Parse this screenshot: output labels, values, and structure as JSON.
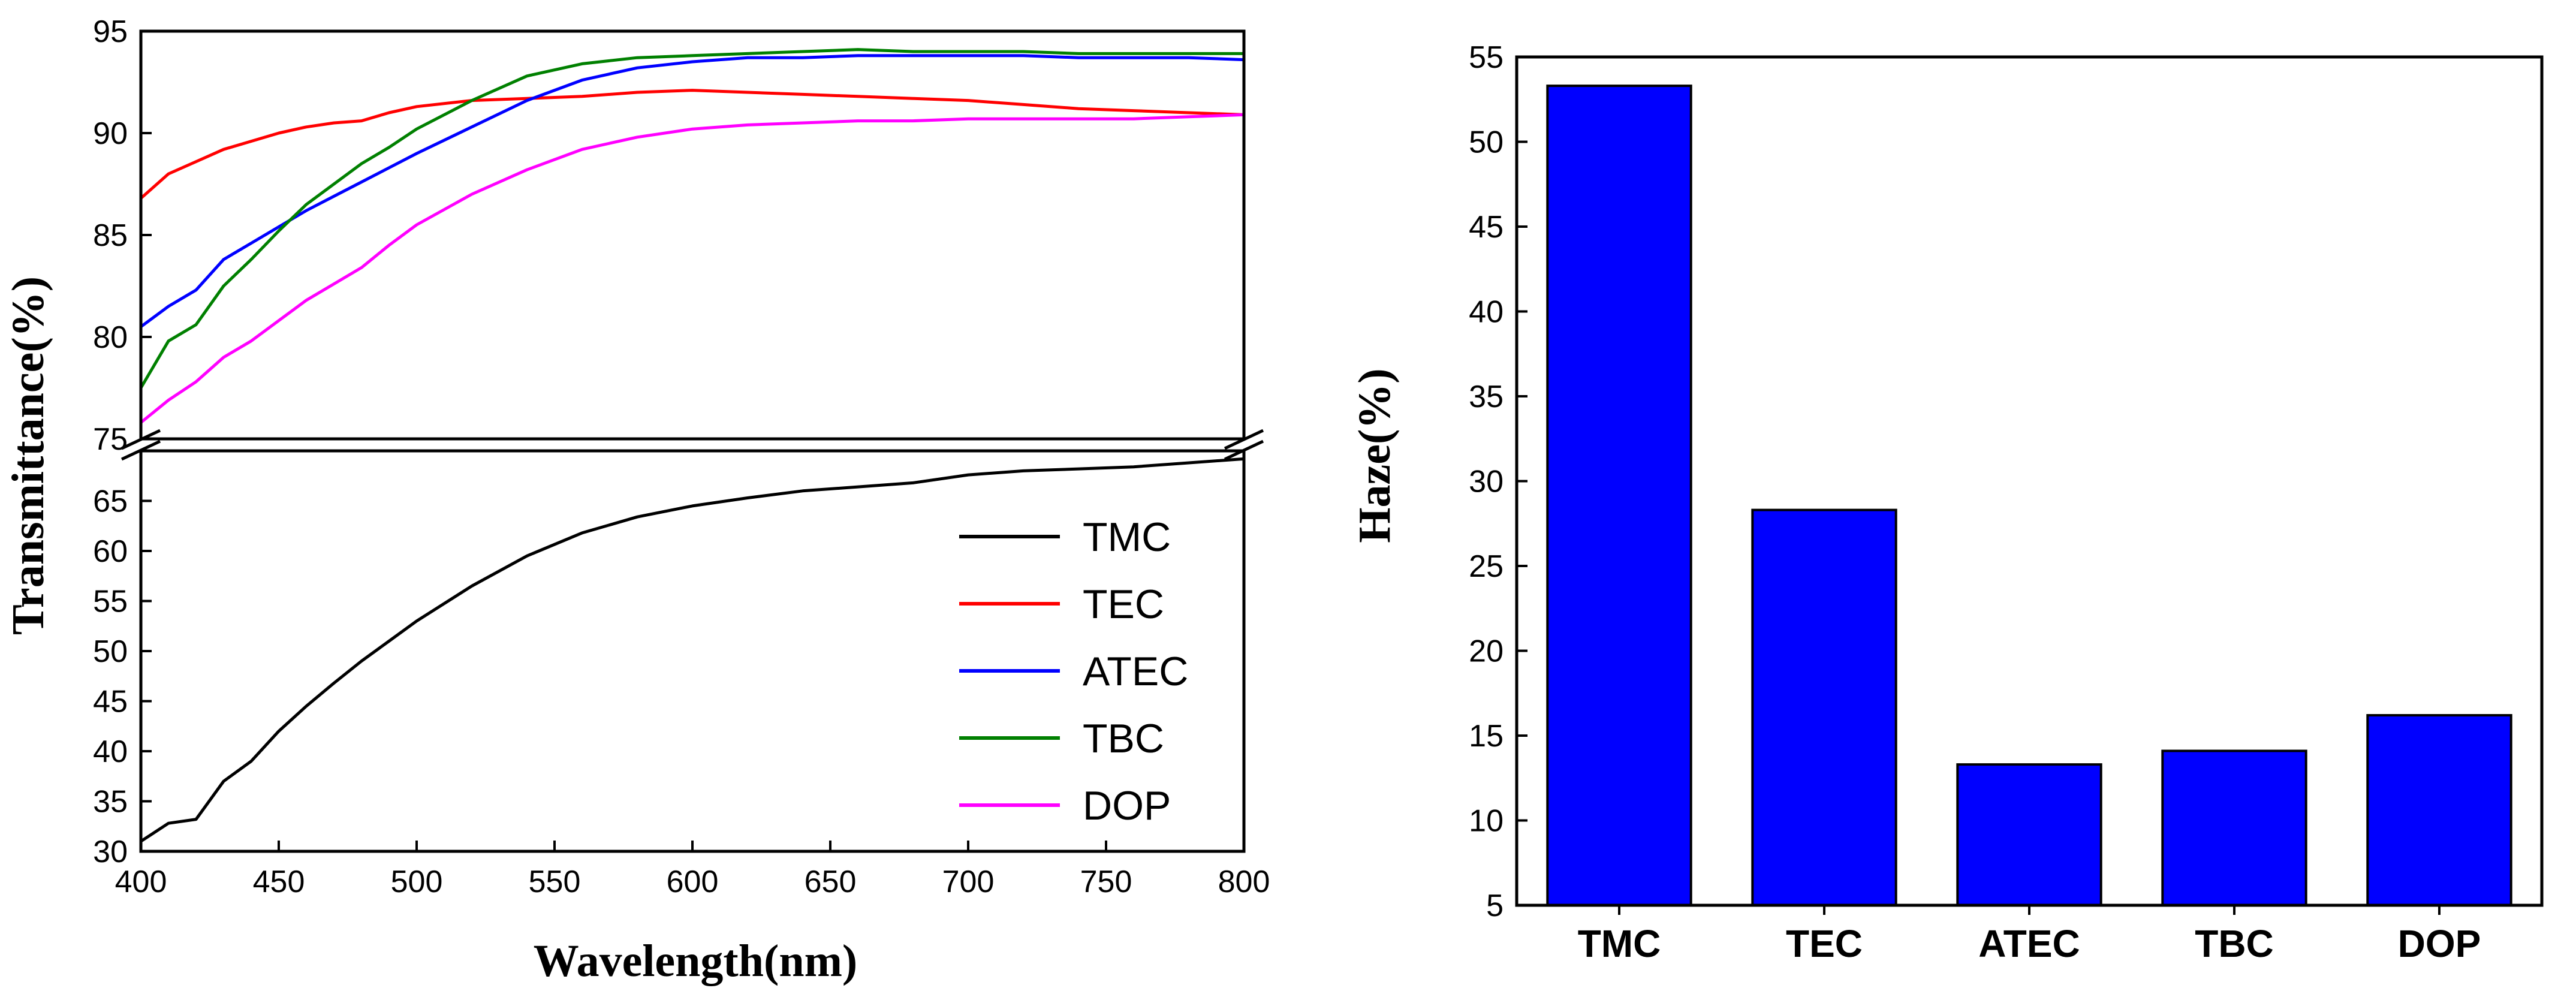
{
  "chart_data": [
    {
      "type": "line",
      "panel": "left",
      "xlabel": "Wavelength(nm)",
      "ylabel": "Transmittance(%)",
      "xlim": [
        400,
        800
      ],
      "x_ticks": [
        400,
        450,
        500,
        550,
        600,
        650,
        700,
        750,
        800
      ],
      "axis_break": true,
      "upper_ylim": [
        75,
        95
      ],
      "upper_y_ticks": [
        75,
        80,
        85,
        90,
        95
      ],
      "lower_ylim": [
        30,
        70
      ],
      "lower_y_ticks": [
        30,
        35,
        40,
        45,
        50,
        55,
        60,
        65
      ],
      "legend_position": "lower-right",
      "x": [
        400,
        410,
        420,
        430,
        440,
        450,
        460,
        470,
        480,
        490,
        500,
        520,
        540,
        560,
        580,
        600,
        620,
        640,
        660,
        680,
        700,
        720,
        740,
        760,
        780,
        800
      ],
      "series": [
        {
          "name": "TMC",
          "color": "#000000",
          "panel": "lower",
          "values": [
            31.0,
            32.8,
            33.2,
            37.0,
            39.0,
            42.0,
            44.5,
            46.8,
            49.0,
            51.0,
            53.0,
            56.5,
            59.5,
            61.8,
            63.4,
            64.5,
            65.3,
            66.0,
            66.4,
            66.8,
            67.6,
            68.0,
            68.2,
            68.4,
            68.8,
            69.2
          ]
        },
        {
          "name": "TEC",
          "color": "#ff0000",
          "panel": "upper",
          "values": [
            86.8,
            88.0,
            88.6,
            89.2,
            89.6,
            90.0,
            90.3,
            90.5,
            90.6,
            91.0,
            91.3,
            91.6,
            91.7,
            91.8,
            92.0,
            92.1,
            92.0,
            91.9,
            91.8,
            91.7,
            91.6,
            91.4,
            91.2,
            91.1,
            91.0,
            90.9
          ]
        },
        {
          "name": "ATEC",
          "color": "#0000ff",
          "panel": "upper",
          "values": [
            80.5,
            81.5,
            82.3,
            83.8,
            84.6,
            85.4,
            86.2,
            86.9,
            87.6,
            88.3,
            89.0,
            90.3,
            91.6,
            92.6,
            93.2,
            93.5,
            93.7,
            93.7,
            93.8,
            93.8,
            93.8,
            93.8,
            93.7,
            93.7,
            93.7,
            93.6
          ]
        },
        {
          "name": "TBC",
          "color": "#008000",
          "panel": "upper",
          "values": [
            77.5,
            79.8,
            80.6,
            82.5,
            83.8,
            85.2,
            86.5,
            87.5,
            88.5,
            89.3,
            90.2,
            91.6,
            92.8,
            93.4,
            93.7,
            93.8,
            93.9,
            94.0,
            94.1,
            94.0,
            94.0,
            94.0,
            93.9,
            93.9,
            93.9,
            93.9
          ]
        },
        {
          "name": "DOP",
          "color": "#ff00ff",
          "panel": "upper",
          "values": [
            75.8,
            76.9,
            77.8,
            79.0,
            79.8,
            80.8,
            81.8,
            82.6,
            83.4,
            84.5,
            85.5,
            87.0,
            88.2,
            89.2,
            89.8,
            90.2,
            90.4,
            90.5,
            90.6,
            90.6,
            90.7,
            90.7,
            90.7,
            90.7,
            90.8,
            90.9
          ]
        }
      ]
    },
    {
      "type": "bar",
      "panel": "right",
      "title": "",
      "xlabel": "",
      "ylabel": "Haze(%)",
      "categories": [
        "TMC",
        "TEC",
        "ATEC",
        "TBC",
        "DOP"
      ],
      "values": [
        53.3,
        28.3,
        13.3,
        14.1,
        16.2
      ],
      "ylim": [
        5,
        55
      ],
      "y_ticks": [
        5,
        10,
        15,
        20,
        25,
        30,
        35,
        40,
        45,
        50,
        55
      ],
      "bar_color": "#0000ff"
    }
  ]
}
